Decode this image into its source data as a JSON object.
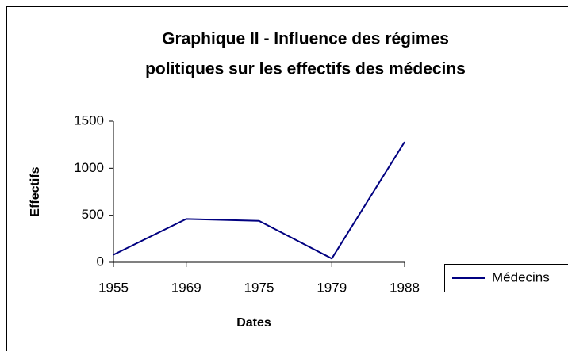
{
  "chart_data": {
    "type": "line",
    "title": [
      "Graphique II - Influence des régimes",
      "politiques sur les effectifs des médecins"
    ],
    "x_label": "Dates",
    "y_label": "Effectifs",
    "categories": [
      "1955",
      "1969",
      "1975",
      "1979",
      "1988"
    ],
    "series": [
      {
        "name": "Médecins",
        "color": "#000080",
        "values": [
          80,
          460,
          440,
          40,
          1280
        ]
      }
    ],
    "ylim": [
      0,
      1500
    ],
    "yticks": [
      0,
      500,
      1000,
      1500
    ],
    "grid": false,
    "legend": "right"
  }
}
